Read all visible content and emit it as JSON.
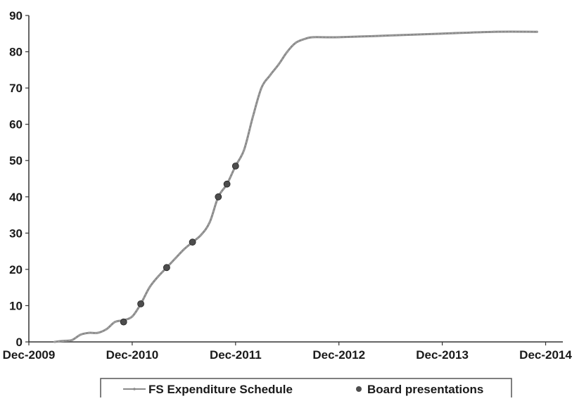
{
  "chart_data": {
    "type": "line",
    "title": "",
    "xlabel": "",
    "ylabel": "",
    "ylim": [
      0,
      90
    ],
    "y_ticks": [
      0,
      10,
      20,
      30,
      40,
      50,
      60,
      70,
      80,
      90
    ],
    "xlim": [
      "2009-12",
      "2015-02"
    ],
    "x_ticks": [
      "Dec-2009",
      "Dec-2010",
      "Dec-2011",
      "Dec-2012",
      "Dec-2013",
      "Dec-2014"
    ],
    "grid": false,
    "legend_position": "bottom",
    "series": [
      {
        "name": "FS Expenditure Schedule",
        "type": "line",
        "color": "#8a8a8a",
        "points": [
          {
            "x": "2010-03",
            "y": 0
          },
          {
            "x": "2010-04",
            "y": 0.3
          },
          {
            "x": "2010-05",
            "y": 0.5
          },
          {
            "x": "2010-06",
            "y": 2
          },
          {
            "x": "2010-07",
            "y": 2.5
          },
          {
            "x": "2010-08",
            "y": 2.5
          },
          {
            "x": "2010-09",
            "y": 3.5
          },
          {
            "x": "2010-10",
            "y": 5.5
          },
          {
            "x": "2010-11",
            "y": 6
          },
          {
            "x": "2010-12",
            "y": 7
          },
          {
            "x": "2011-01",
            "y": 10.5
          },
          {
            "x": "2011-02",
            "y": 15
          },
          {
            "x": "2011-03",
            "y": 18
          },
          {
            "x": "2011-04",
            "y": 20.5
          },
          {
            "x": "2011-05",
            "y": 23
          },
          {
            "x": "2011-06",
            "y": 25.5
          },
          {
            "x": "2011-07",
            "y": 27.5
          },
          {
            "x": "2011-08",
            "y": 29.5
          },
          {
            "x": "2011-09",
            "y": 33
          },
          {
            "x": "2011-10",
            "y": 40
          },
          {
            "x": "2011-11",
            "y": 43.5
          },
          {
            "x": "2011-12",
            "y": 48.5
          },
          {
            "x": "2012-01",
            "y": 53
          },
          {
            "x": "2012-02",
            "y": 62
          },
          {
            "x": "2012-03",
            "y": 70
          },
          {
            "x": "2012-04",
            "y": 73.5
          },
          {
            "x": "2012-05",
            "y": 76.5
          },
          {
            "x": "2012-06",
            "y": 80
          },
          {
            "x": "2012-07",
            "y": 82.5
          },
          {
            "x": "2012-08",
            "y": 83.5
          },
          {
            "x": "2012-09",
            "y": 84
          },
          {
            "x": "2012-12",
            "y": 84
          },
          {
            "x": "2013-06",
            "y": 84.5
          },
          {
            "x": "2013-12",
            "y": 85
          },
          {
            "x": "2014-06",
            "y": 85.5
          },
          {
            "x": "2014-11",
            "y": 85.5
          }
        ]
      },
      {
        "name": "Board presentations",
        "type": "scatter",
        "color": "#4d4d4d",
        "points": [
          {
            "x": "2010-11",
            "y": 5.5
          },
          {
            "x": "2011-01",
            "y": 10.5
          },
          {
            "x": "2011-04",
            "y": 20.5
          },
          {
            "x": "2011-07",
            "y": 27.5
          },
          {
            "x": "2011-10",
            "y": 40
          },
          {
            "x": "2011-11",
            "y": 43.5
          },
          {
            "x": "2011-12",
            "y": 48.5
          }
        ]
      }
    ],
    "legend": [
      {
        "label": "FS Expenditure Schedule",
        "marker": "line"
      },
      {
        "label": "Board presentations",
        "marker": "dot"
      }
    ]
  }
}
